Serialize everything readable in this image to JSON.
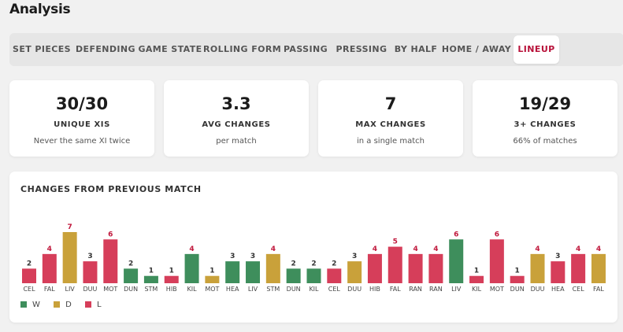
{
  "page_title": "Analysis",
  "tabs": [
    {
      "label": "SET PIECES"
    },
    {
      "label": "DEFENDING"
    },
    {
      "label": "GAME STATE"
    },
    {
      "label": "ROLLING FORM"
    },
    {
      "label": "PASSING"
    },
    {
      "label": "PRESSING"
    },
    {
      "label": "BY HALF"
    },
    {
      "label": "HOME / AWAY"
    },
    {
      "label": "LINEUP",
      "active": true
    }
  ],
  "cards": [
    {
      "value": "30/30",
      "label": "UNIQUE XIS",
      "sub": "Never the same XI twice"
    },
    {
      "value": "3.3",
      "label": "AVG CHANGES",
      "sub": "per match"
    },
    {
      "value": "7",
      "label": "MAX CHANGES",
      "sub": "in a single match"
    },
    {
      "value": "19/29",
      "label": "3+ CHANGES",
      "sub": "66% of matches"
    }
  ],
  "colors": {
    "W": "#3e8e5c",
    "D": "#c9a13a",
    "L": "#d63e5a",
    "accent": "#b8123a",
    "value_label_highlight": "#c0183c",
    "value_label_normal": "#333333"
  },
  "chart_data": {
    "type": "bar",
    "title": "CHANGES FROM PREVIOUS MATCH",
    "categories": [
      "CEL",
      "FAL",
      "LIV",
      "DUU",
      "MOT",
      "DUN",
      "STM",
      "HIB",
      "KIL",
      "MOT",
      "HEA",
      "LIV",
      "STM",
      "DUN",
      "KIL",
      "CEL",
      "DUU",
      "HIB",
      "FAL",
      "RAN",
      "RAN",
      "LIV",
      "KIL",
      "MOT",
      "DUN",
      "DUU",
      "HEA",
      "CEL",
      "FAL"
    ],
    "values": [
      2,
      4,
      7,
      3,
      6,
      2,
      1,
      1,
      4,
      1,
      3,
      3,
      4,
      2,
      2,
      2,
      3,
      4,
      5,
      4,
      4,
      6,
      1,
      6,
      1,
      4,
      3,
      4,
      4
    ],
    "results": [
      "L",
      "L",
      "D",
      "L",
      "L",
      "W",
      "W",
      "L",
      "W",
      "D",
      "W",
      "W",
      "D",
      "W",
      "W",
      "L",
      "D",
      "L",
      "L",
      "L",
      "L",
      "W",
      "L",
      "L",
      "L",
      "D",
      "L",
      "L",
      "D"
    ],
    "highlight_threshold": 4,
    "ylim": [
      0,
      7
    ],
    "legend": [
      {
        "key": "W",
        "label": "W"
      },
      {
        "key": "D",
        "label": "D"
      },
      {
        "key": "L",
        "label": "L"
      }
    ],
    "legend_position": "bottom-left",
    "grid": false
  }
}
